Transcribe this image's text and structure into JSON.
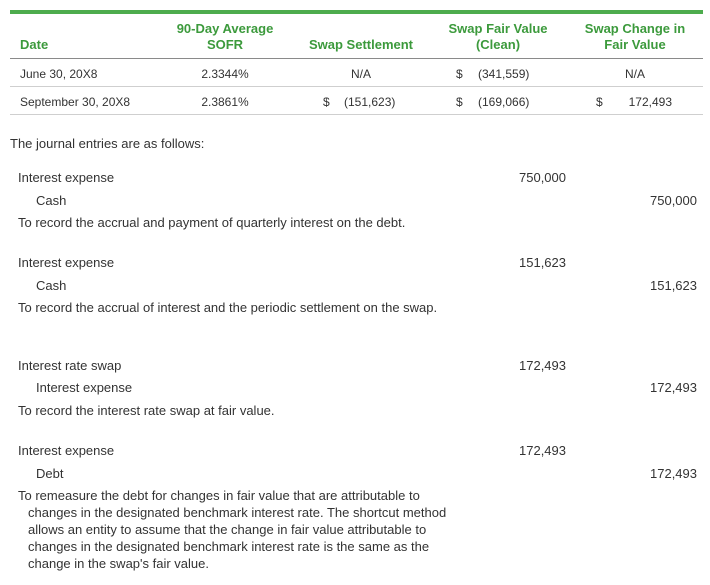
{
  "table": {
    "headers": {
      "date": "Date",
      "sofr": [
        "90-Day Average",
        "SOFR"
      ],
      "settlement": "Swap Settlement",
      "fair_value": [
        "Swap Fair Value",
        "(Clean)"
      ],
      "change": [
        "Swap Change in",
        "Fair Value"
      ]
    },
    "rows": [
      {
        "date": "June 30, 20X8",
        "sofr": "2.3344%",
        "settlement_dollar": "",
        "settlement": "N/A",
        "fv_dollar": "$",
        "fair_value": "(341,559)",
        "change_dollar": "",
        "change": "N/A"
      },
      {
        "date": "September 30, 20X8",
        "sofr": "2.3861%",
        "settlement_dollar": "$",
        "settlement": "(151,623)",
        "fv_dollar": "$",
        "fair_value": "(169,066)",
        "change_dollar": "$",
        "change": "172,493"
      }
    ]
  },
  "intro": "The journal entries are as follows:",
  "entries": [
    {
      "debit_account": "Interest expense",
      "debit_amount": "750,000",
      "credit_account": "Cash",
      "credit_amount": "750,000",
      "description": "To record the accrual and payment of quarterly interest on the debt."
    },
    {
      "debit_account": "Interest expense",
      "debit_amount": "151,623",
      "credit_account": "Cash",
      "credit_amount": "151,623",
      "description": "To record the accrual of interest and the periodic settlement on the swap."
    },
    {
      "debit_account": "Interest rate swap",
      "debit_amount": "172,493",
      "credit_account": "Interest expense",
      "credit_amount": "172,493",
      "description": "To record the interest rate swap at fair value."
    },
    {
      "debit_account": "Interest expense",
      "debit_amount": "172,493",
      "credit_account": "Debt",
      "credit_amount": "172,493",
      "description": "To remeasure the debt for changes in fair value that are attributable to changes in the designated benchmark interest rate. The shortcut method allows an entity to assume that the change in fair value attributable to changes in the designated benchmark interest rate is the same as the change in the swap's fair value."
    }
  ],
  "colors": {
    "accent": "#4dac4d",
    "header_text": "#3c9a3c",
    "body_text": "#333333"
  }
}
